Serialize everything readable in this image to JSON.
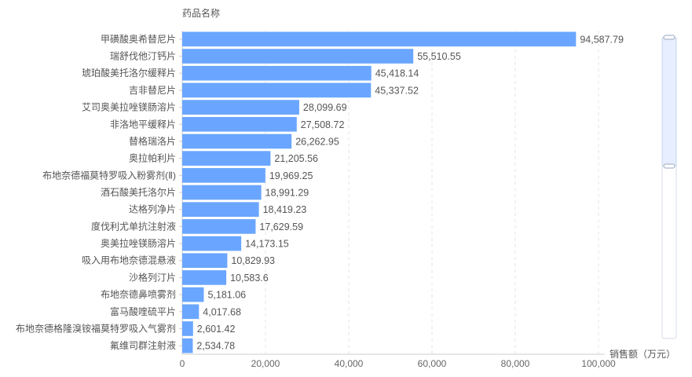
{
  "chart_data": {
    "type": "bar",
    "orientation": "horizontal",
    "ylabel": "药品名称",
    "xlabel": "销售额（万元）",
    "xlim": [
      0,
      100000
    ],
    "xticks": [
      "0",
      "20,000",
      "40,000",
      "60,000",
      "80,000",
      "100,000"
    ],
    "grid": true,
    "bar_color": "#6aa6ff",
    "categories": [
      "甲磺酸奥希替尼片",
      "瑞舒伐他汀钙片",
      "琥珀酸美托洛尔缓释片",
      "吉非替尼片",
      "艾司奥美拉唑镁肠溶片",
      "非洛地平缓释片",
      "替格瑞洛片",
      "奥拉帕利片",
      "布地奈德福莫特罗吸入粉雾剂(Ⅱ)",
      "酒石酸美托洛尔片",
      "达格列净片",
      "度伐利尤单抗注射液",
      "奥美拉唑镁肠溶片",
      "吸入用布地奈德混悬液",
      "沙格列汀片",
      "布地奈德鼻喷雾剂",
      "富马酸喹硫平片",
      "布地奈德格隆溴铵福莫特罗吸入气雾剂",
      "氟维司群注射液"
    ],
    "values": [
      94587.79,
      55510.55,
      45418.14,
      45337.52,
      28099.69,
      27508.72,
      26262.95,
      21205.56,
      19969.25,
      18991.29,
      18419.23,
      17629.59,
      14173.15,
      10829.93,
      10583.6,
      5181.06,
      4017.68,
      2601.42,
      2534.78
    ],
    "value_labels": [
      "94,587.79",
      "55,510.55",
      "45,418.14",
      "45,337.52",
      "28,099.69",
      "27,508.72",
      "26,262.95",
      "21,205.56",
      "19,969.25",
      "18,991.29",
      "18,419.23",
      "17,629.59",
      "14,173.15",
      "10,829.93",
      "10,583.6",
      "5,181.06",
      "4,017.68",
      "2,601.42",
      "2,534.78"
    ]
  }
}
